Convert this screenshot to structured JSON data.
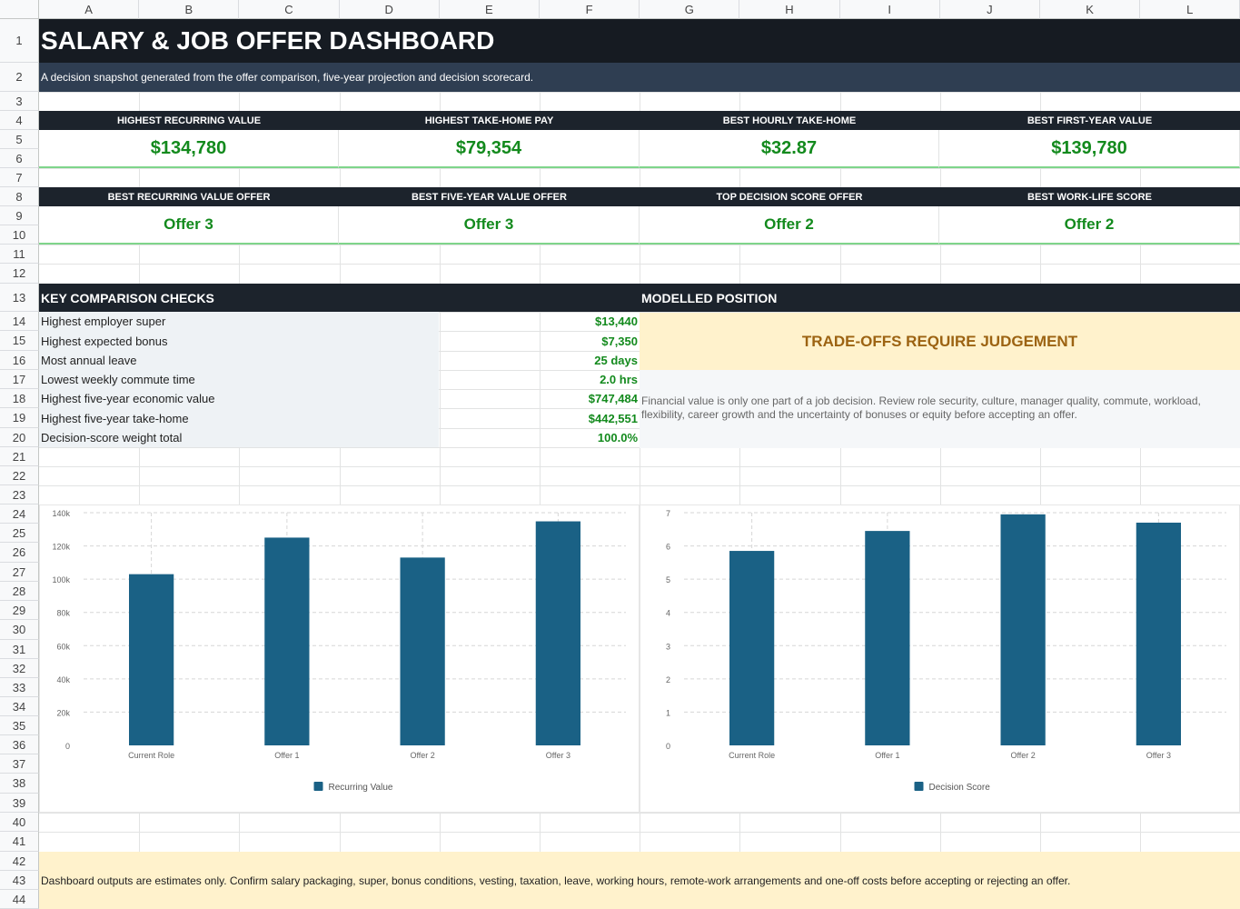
{
  "columns": [
    "A",
    "B",
    "C",
    "D",
    "E",
    "F",
    "G",
    "H",
    "I",
    "J",
    "K",
    "L"
  ],
  "rows": [
    "1",
    "2",
    "3",
    "4",
    "5",
    "6",
    "7",
    "8",
    "9",
    "10",
    "11",
    "12",
    "13",
    "14",
    "15",
    "16",
    "17",
    "18",
    "19",
    "20",
    "21",
    "22",
    "23",
    "24",
    "25",
    "26",
    "27",
    "28",
    "29",
    "30",
    "31",
    "32",
    "33",
    "34",
    "35",
    "36",
    "37",
    "38",
    "39",
    "40",
    "41",
    "42",
    "43",
    "44"
  ],
  "title": "SALARY & JOB OFFER DASHBOARD",
  "subtitle": "A decision snapshot generated from the offer comparison, five-year projection and decision scorecard.",
  "kpis_top": [
    {
      "label": "HIGHEST RECURRING VALUE",
      "value": "$134,780"
    },
    {
      "label": "HIGHEST TAKE-HOME PAY",
      "value": "$79,354"
    },
    {
      "label": "BEST HOURLY TAKE-HOME",
      "value": "$32.87"
    },
    {
      "label": "BEST FIRST-YEAR VALUE",
      "value": "$139,780"
    }
  ],
  "kpis_bottom": [
    {
      "label": "BEST RECURRING VALUE OFFER",
      "value": "Offer 3"
    },
    {
      "label": "BEST FIVE-YEAR VALUE OFFER",
      "value": "Offer 3"
    },
    {
      "label": "TOP DECISION SCORE OFFER",
      "value": "Offer 2"
    },
    {
      "label": "BEST WORK-LIFE SCORE",
      "value": "Offer 2"
    }
  ],
  "checks": {
    "heading": "KEY COMPARISON CHECKS",
    "items": [
      {
        "label": "Highest employer super",
        "value": "$13,440"
      },
      {
        "label": "Highest expected bonus",
        "value": "$7,350"
      },
      {
        "label": "Most annual leave",
        "value": "25 days"
      },
      {
        "label": "Lowest weekly commute time",
        "value": "2.0 hrs"
      },
      {
        "label": "Highest five-year economic value",
        "value": "$747,484"
      },
      {
        "label": "Highest five-year take-home",
        "value": "$442,551"
      },
      {
        "label": "Decision-score weight total",
        "value": "100.0%"
      }
    ]
  },
  "position": {
    "heading": "MODELLED POSITION",
    "verdict": "TRADE-OFFS REQUIRE JUDGEMENT",
    "note": "Financial value is only one part of a job decision. Review role security, culture, manager quality, commute, workload, flexibility, career growth and the uncertainty of bonuses or equity before accepting an offer."
  },
  "footer": "Dashboard outputs are estimates only. Confirm salary packaging, super, bonus conditions, vesting, taxation, leave, working hours, remote-work arrangements and one-off costs before accepting or rejecting an offer.",
  "colors": {
    "bar": "#1a6185",
    "accent_green": "#138a1d",
    "header_dark": "#1c232c"
  },
  "chart_data": [
    {
      "type": "bar",
      "categories": [
        "Current Role",
        "Offer 1",
        "Offer 2",
        "Offer 3"
      ],
      "series": [
        {
          "name": "Recurring Value",
          "values": [
            103000,
            125000,
            113000,
            134780
          ]
        }
      ],
      "ylim": [
        0,
        140000
      ],
      "yticks": [
        0,
        20000,
        40000,
        60000,
        80000,
        100000,
        120000,
        140000
      ],
      "ytick_labels": [
        "0",
        "20k",
        "40k",
        "60k",
        "80k",
        "100k",
        "120k",
        "140k"
      ],
      "legend": "bottom",
      "grid": true
    },
    {
      "type": "bar",
      "categories": [
        "Current Role",
        "Offer 1",
        "Offer 2",
        "Offer 3"
      ],
      "series": [
        {
          "name": "Decision Score",
          "values": [
            5.85,
            6.45,
            6.95,
            6.7
          ]
        }
      ],
      "ylim": [
        0,
        7
      ],
      "yticks": [
        0,
        1,
        2,
        3,
        4,
        5,
        6,
        7
      ],
      "ytick_labels": [
        "0",
        "1",
        "2",
        "3",
        "4",
        "5",
        "6",
        "7"
      ],
      "legend": "bottom",
      "grid": true
    }
  ]
}
